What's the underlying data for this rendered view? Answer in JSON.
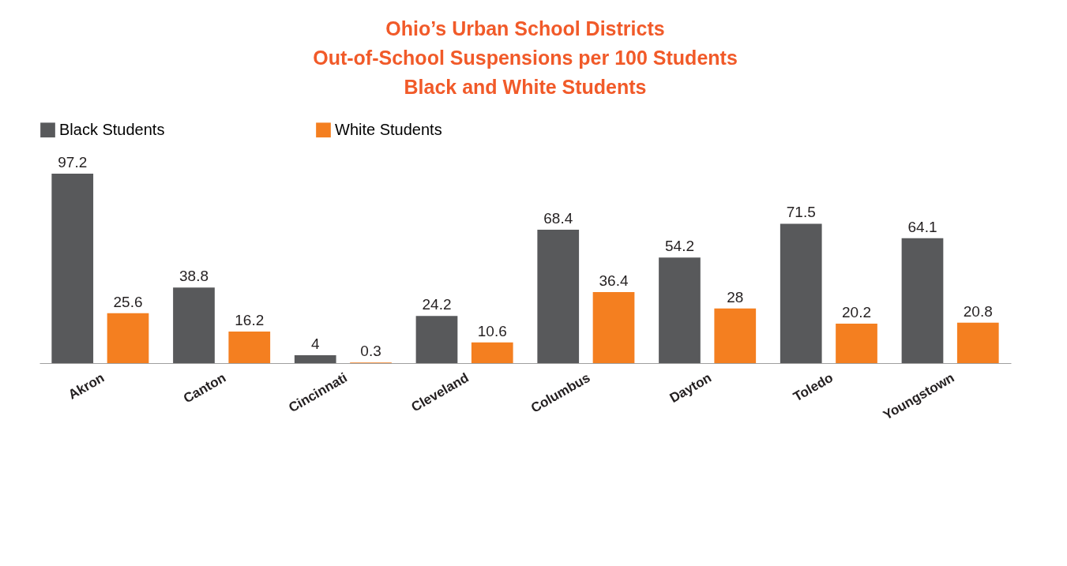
{
  "chart_data": {
    "type": "bar",
    "title": "Ohio’s Urban School Districts\nOut-of-School Suspensions per 100 Students\nBlack and White Students",
    "categories": [
      "Akron",
      "Canton",
      "Cincinnati",
      "Cleveland",
      "Columbus",
      "Dayton",
      "Toledo",
      "Youngstown"
    ],
    "series": [
      {
        "name": "Black Students",
        "color": "#58595b",
        "values": [
          97.2,
          38.8,
          4,
          24.2,
          68.4,
          54.2,
          71.5,
          64.1
        ]
      },
      {
        "name": "White Students",
        "color": "#f47f20",
        "values": [
          25.6,
          16.2,
          0.3,
          10.6,
          36.4,
          28,
          20.2,
          20.8
        ]
      }
    ],
    "data_labels": true,
    "legend": "top",
    "grid": false,
    "tick_labels": "x"
  }
}
